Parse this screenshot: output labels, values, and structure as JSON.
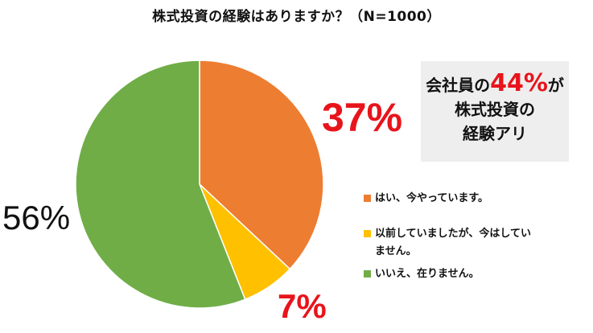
{
  "chart_data": {
    "type": "pie",
    "title": "株式投資の経験はありますか？（N=1000）",
    "slices": [
      {
        "label": "はい、今やっています。",
        "value": 37,
        "display": "37%",
        "color": "#ed7d31"
      },
      {
        "label": "以前していましたが、今はしていません。",
        "value": 7,
        "display": "7%",
        "color": "#ffc000"
      },
      {
        "label": "いいえ、在りません。",
        "value": 56,
        "display": "56%",
        "color": "#70ad47"
      }
    ]
  },
  "callout": {
    "line1_pre": "会社員の",
    "line1_highlight": "44%",
    "line1_post": "が",
    "line2": "株式投資の",
    "line3": "経験アリ"
  }
}
